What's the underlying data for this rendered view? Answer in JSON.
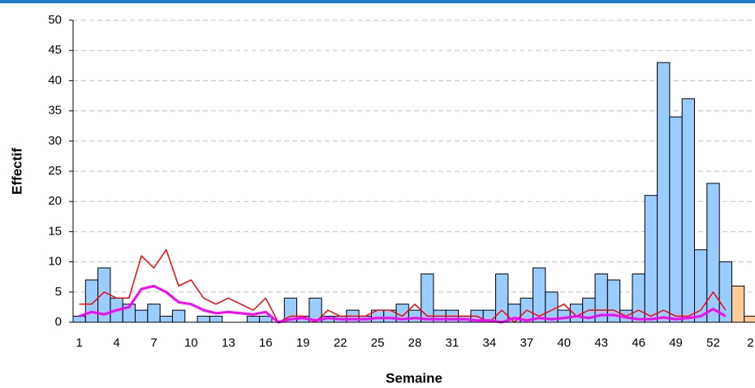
{
  "chart_data": {
    "type": "bar",
    "x_label": "Semaine",
    "y_label": "Effectif",
    "categories": [
      "1",
      null,
      null,
      "4",
      null,
      null,
      "7",
      null,
      null,
      "10",
      null,
      null,
      "13",
      null,
      null,
      "16",
      null,
      null,
      "19",
      null,
      null,
      "22",
      null,
      null,
      "25",
      null,
      null,
      "28",
      null,
      null,
      "31",
      null,
      null,
      "34",
      null,
      null,
      "37",
      null,
      null,
      "40",
      null,
      null,
      "43",
      null,
      null,
      "46",
      null,
      null,
      "49",
      null,
      null,
      "52",
      null,
      null,
      "2"
    ],
    "values": [
      1,
      7,
      9,
      4,
      3,
      2,
      3,
      1,
      2,
      0,
      1,
      1,
      0,
      0,
      1,
      1,
      0,
      4,
      1,
      4,
      1,
      1,
      2,
      1,
      2,
      2,
      3,
      2,
      8,
      2,
      2,
      1,
      2,
      2,
      8,
      3,
      4,
      9,
      5,
      2,
      3,
      4,
      8,
      7,
      2,
      8,
      21,
      43,
      34,
      37,
      12,
      23,
      10,
      6,
      1
    ],
    "colors": [
      "#99ccff",
      "#99ccff",
      "#99ccff",
      "#99ccff",
      "#99ccff",
      "#99ccff",
      "#99ccff",
      "#99ccff",
      "#99ccff",
      "#99ccff",
      "#99ccff",
      "#99ccff",
      "#99ccff",
      "#99ccff",
      "#99ccff",
      "#99ccff",
      "#99ccff",
      "#99ccff",
      "#99ccff",
      "#99ccff",
      "#99ccff",
      "#99ccff",
      "#99ccff",
      "#99ccff",
      "#99ccff",
      "#99ccff",
      "#99ccff",
      "#99ccff",
      "#99ccff",
      "#99ccff",
      "#99ccff",
      "#99ccff",
      "#99ccff",
      "#99ccff",
      "#99ccff",
      "#99ccff",
      "#99ccff",
      "#99ccff",
      "#99ccff",
      "#99ccff",
      "#99ccff",
      "#99ccff",
      "#99ccff",
      "#99ccff",
      "#99ccff",
      "#99ccff",
      "#99ccff",
      "#99ccff",
      "#99ccff",
      "#99ccff",
      "#99ccff",
      "#99ccff",
      "#99ccff",
      "#ffcc99",
      "#ffcc99"
    ],
    "lines": [
      {
        "color": "#ff0000",
        "width": 1.5,
        "values": [
          3,
          3,
          5,
          4,
          4,
          11,
          9,
          12,
          6,
          7,
          4,
          3,
          4,
          3,
          2,
          4,
          0,
          1,
          1,
          0,
          2,
          1,
          1,
          1,
          2,
          2,
          1,
          3,
          1,
          1,
          1,
          1,
          1,
          0,
          2,
          0,
          2,
          1,
          2,
          3,
          1,
          2,
          2,
          2,
          1,
          2,
          1,
          2,
          1,
          1,
          2,
          5,
          2,
          null,
          null
        ]
      },
      {
        "color": "#ff00ff",
        "width": 3,
        "values": [
          1,
          1.7,
          1.3,
          2,
          2.5,
          5.5,
          6,
          5,
          3.3,
          3,
          2,
          1.5,
          1.7,
          1.5,
          1.3,
          1.7,
          0,
          0.5,
          0.7,
          0.3,
          0.7,
          0.5,
          0.5,
          0.5,
          0.7,
          0.7,
          0.5,
          0.7,
          0.5,
          0.5,
          0.5,
          0.5,
          0.3,
          0.3,
          0,
          0.7,
          0.3,
          0.7,
          0.5,
          0.7,
          1,
          0.7,
          1.2,
          1.2,
          0.8,
          0.5,
          0.5,
          0.8,
          0.5,
          0.7,
          1,
          2.2,
          1,
          null,
          null
        ]
      }
    ],
    "ylim": [
      0,
      50
    ],
    "yticks": [
      0,
      5,
      10,
      15,
      20,
      25,
      30,
      35,
      40,
      45,
      50
    ],
    "grid": true
  }
}
